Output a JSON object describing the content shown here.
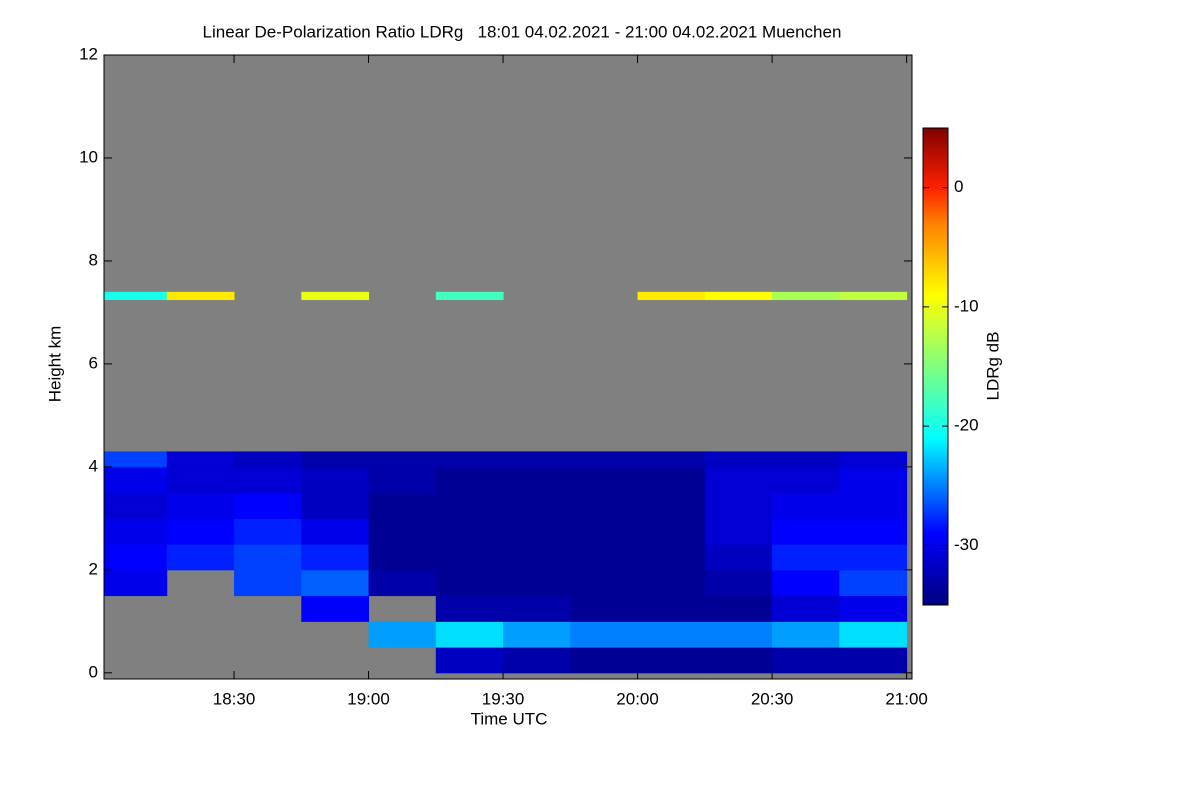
{
  "chart_data": {
    "type": "heatmap",
    "title": "Linear De-Polarization Ratio LDRg   18:01 04.02.2021 - 21:00 04.02.2021 Muenchen",
    "xlabel": "Time UTC",
    "ylabel": "Height km",
    "colorbar_label": "LDRg dB",
    "xlim": [
      18.0167,
      21.02
    ],
    "xticks": [
      {
        "value": 18.5,
        "label": "18:30"
      },
      {
        "value": 19,
        "label": "19:00"
      },
      {
        "value": 19.5,
        "label": "19:30"
      },
      {
        "value": 20,
        "label": "20:00"
      },
      {
        "value": 20.5,
        "label": "20:30"
      },
      {
        "value": 21,
        "label": "21:00"
      }
    ],
    "ylim": [
      -0.12,
      12
    ],
    "yticks": [
      0,
      2,
      4,
      6,
      8,
      10,
      12
    ],
    "clim": [
      -35,
      5
    ],
    "cticks": [
      0,
      -10,
      -20,
      -30
    ],
    "missing_color": "#808080",
    "colorscale": [
      {
        "value": -35,
        "color": "#000080"
      },
      {
        "value": -29,
        "color": "#0000ff"
      },
      {
        "value": -21,
        "color": "#00ffff"
      },
      {
        "value": -15,
        "color": "#80ff80"
      },
      {
        "value": -9,
        "color": "#ffff00"
      },
      {
        "value": -3,
        "color": "#ff8000"
      },
      {
        "value": 0,
        "color": "#ff2000"
      },
      {
        "value": 5,
        "color": "#800000"
      }
    ],
    "x_bins": [
      18.0167,
      18.25,
      18.5,
      18.75,
      19,
      19.25,
      19.5,
      19.75,
      20,
      20.25,
      20.5,
      20.75,
      21
    ],
    "y_bins": [
      0,
      0.5,
      1,
      1.5,
      2,
      2.5,
      3,
      3.5,
      4,
      4.3,
      7.25,
      7.4
    ],
    "z": [
      [
        null,
        null,
        null,
        null,
        null,
        -32,
        -33,
        -34,
        -34,
        -34,
        -33,
        -33
      ],
      [
        null,
        null,
        null,
        null,
        -24,
        -22,
        -24,
        -25,
        -25,
        -25,
        -24,
        -22
      ],
      [
        null,
        null,
        null,
        -29,
        null,
        -33,
        -33,
        -34,
        -34,
        -34,
        -31,
        -30
      ],
      [
        -30,
        null,
        -27,
        -26,
        -33,
        -34,
        -34,
        -34,
        -34,
        -33,
        -29,
        -27
      ],
      [
        -29,
        -28,
        -27,
        -28,
        -34,
        -34,
        -34,
        -34,
        -34,
        -32,
        -28,
        -28
      ],
      [
        -30,
        -29,
        -28,
        -30,
        -34,
        -34,
        -34,
        -34,
        -34,
        -31,
        -29,
        -29
      ],
      [
        -31,
        -30,
        -29,
        -32,
        -34,
        -34,
        -34,
        -34,
        -34,
        -31,
        -30,
        -30
      ],
      [
        -30,
        -31,
        -31,
        -32,
        -33,
        -34,
        -34,
        -34,
        -34,
        -31,
        -31,
        -30
      ],
      [
        -27,
        -31,
        -32,
        -33,
        -33,
        -33,
        -33,
        -33,
        -33,
        -32,
        -32,
        -31
      ],
      [
        null,
        null,
        null,
        null,
        null,
        null,
        null,
        null,
        null,
        null,
        null,
        null
      ],
      [
        -20,
        -8,
        null,
        -10,
        null,
        -18,
        null,
        null,
        -8,
        -9,
        -13,
        -12
      ]
    ]
  }
}
